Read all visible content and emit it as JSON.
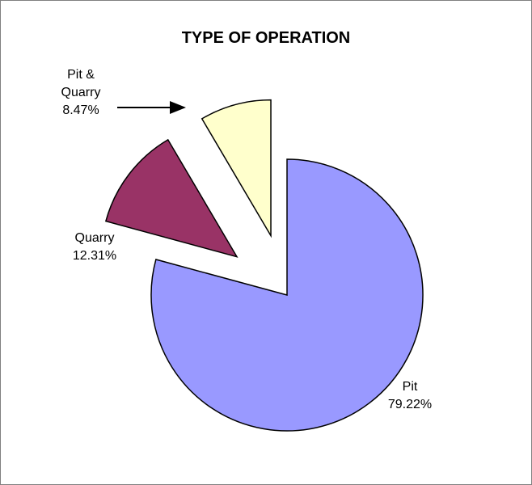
{
  "chart_data": {
    "type": "pie",
    "title": "TYPE OF OPERATION",
    "categories": [
      "Pit",
      "Quarry",
      "Pit & Quarry"
    ],
    "values": [
      79.22,
      12.31,
      8.47
    ],
    "value_labels": [
      "79.22%",
      "12.31%",
      "8.47%"
    ],
    "colors": [
      "#9999ff",
      "#993366",
      "#ffffcc"
    ]
  }
}
